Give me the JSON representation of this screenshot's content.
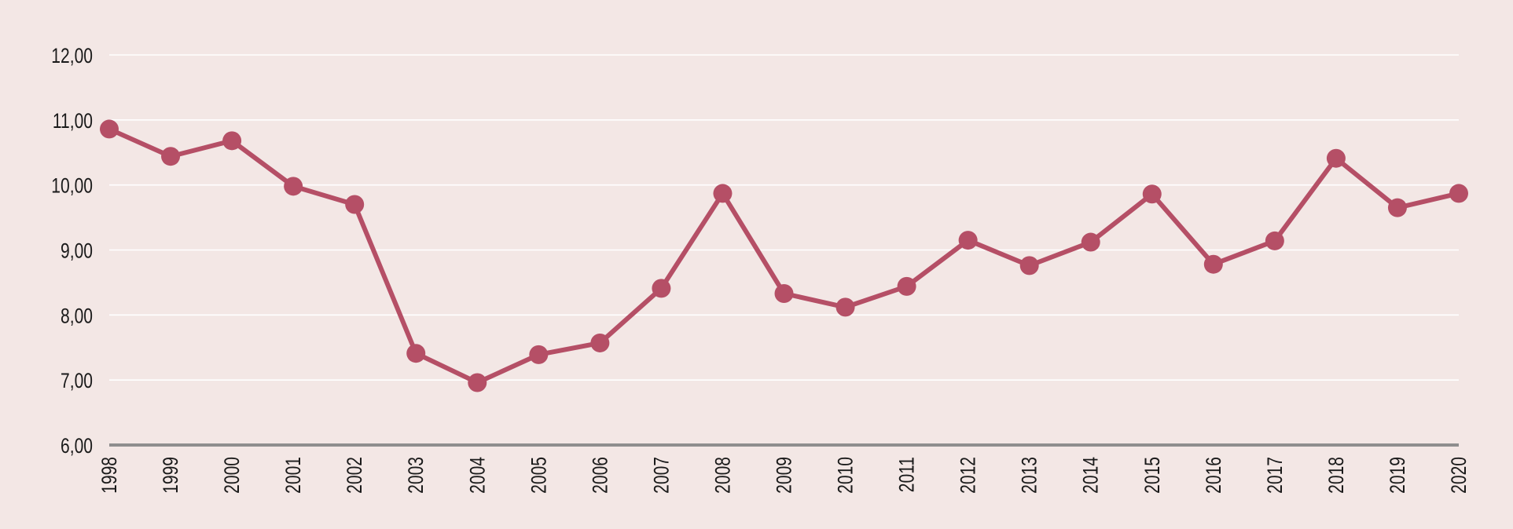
{
  "chart_data": {
    "type": "line",
    "title": "",
    "xlabel": "",
    "ylabel": "",
    "ylim": [
      6,
      12
    ],
    "yticks": [
      6,
      7,
      8,
      9,
      10,
      11,
      12
    ],
    "ytick_labels": [
      "6,00",
      "7,00",
      "8,00",
      "9,00",
      "10,00",
      "11,00",
      "12,00"
    ],
    "grid": true,
    "legend": "none",
    "categories": [
      "1998",
      "1999",
      "2000",
      "2001",
      "2002",
      "2003",
      "2004",
      "2005",
      "2006",
      "2007",
      "2008",
      "2009",
      "2010",
      "2011",
      "2012",
      "2013",
      "2014",
      "2015",
      "2016",
      "2017",
      "2018",
      "2019",
      "2020"
    ],
    "series": [
      {
        "values": [
          10.86,
          10.44,
          10.68,
          9.98,
          9.7,
          7.41,
          6.96,
          7.39,
          7.57,
          8.41,
          9.87,
          8.33,
          8.12,
          8.44,
          9.15,
          8.76,
          9.12,
          9.86,
          8.78,
          9.14,
          10.41,
          9.65,
          9.87
        ],
        "color": "#b54f66"
      }
    ]
  },
  "colors": {
    "background": "#f3e7e5",
    "series": "#b54f66",
    "grid": "#ffffff",
    "axis": "#8e8e8e"
  }
}
